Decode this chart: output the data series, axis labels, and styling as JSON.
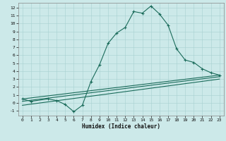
{
  "xlabel": "Humidex (Indice chaleur)",
  "bg_color": "#cce9e9",
  "line_color": "#1a6b5a",
  "xlim": [
    -0.5,
    23.5
  ],
  "ylim": [
    -1.6,
    12.6
  ],
  "xticks": [
    0,
    1,
    2,
    3,
    4,
    5,
    6,
    7,
    8,
    9,
    10,
    11,
    12,
    13,
    14,
    15,
    16,
    17,
    18,
    19,
    20,
    21,
    22,
    23
  ],
  "yticks": [
    -1,
    0,
    1,
    2,
    3,
    4,
    5,
    6,
    7,
    8,
    9,
    10,
    11,
    12
  ],
  "curve1_x": [
    0,
    1,
    3,
    4,
    5,
    6,
    7,
    8,
    9,
    10,
    11,
    12,
    13,
    14,
    15,
    16,
    17,
    18,
    19,
    20,
    21,
    22,
    23
  ],
  "curve1_y": [
    0.5,
    0.2,
    0.5,
    0.3,
    -0.2,
    -1.1,
    -0.3,
    2.7,
    4.8,
    7.5,
    8.8,
    9.5,
    11.5,
    11.3,
    12.2,
    11.2,
    9.8,
    6.8,
    5.4,
    5.1,
    4.3,
    3.8,
    3.5
  ],
  "curve2_x": [
    0,
    23
  ],
  "curve2_y": [
    0.5,
    3.5
  ],
  "curve3_x": [
    0,
    23
  ],
  "curve3_y": [
    0.2,
    3.3
  ],
  "curve4_x": [
    0,
    23
  ],
  "curve4_y": [
    -0.3,
    3.0
  ]
}
